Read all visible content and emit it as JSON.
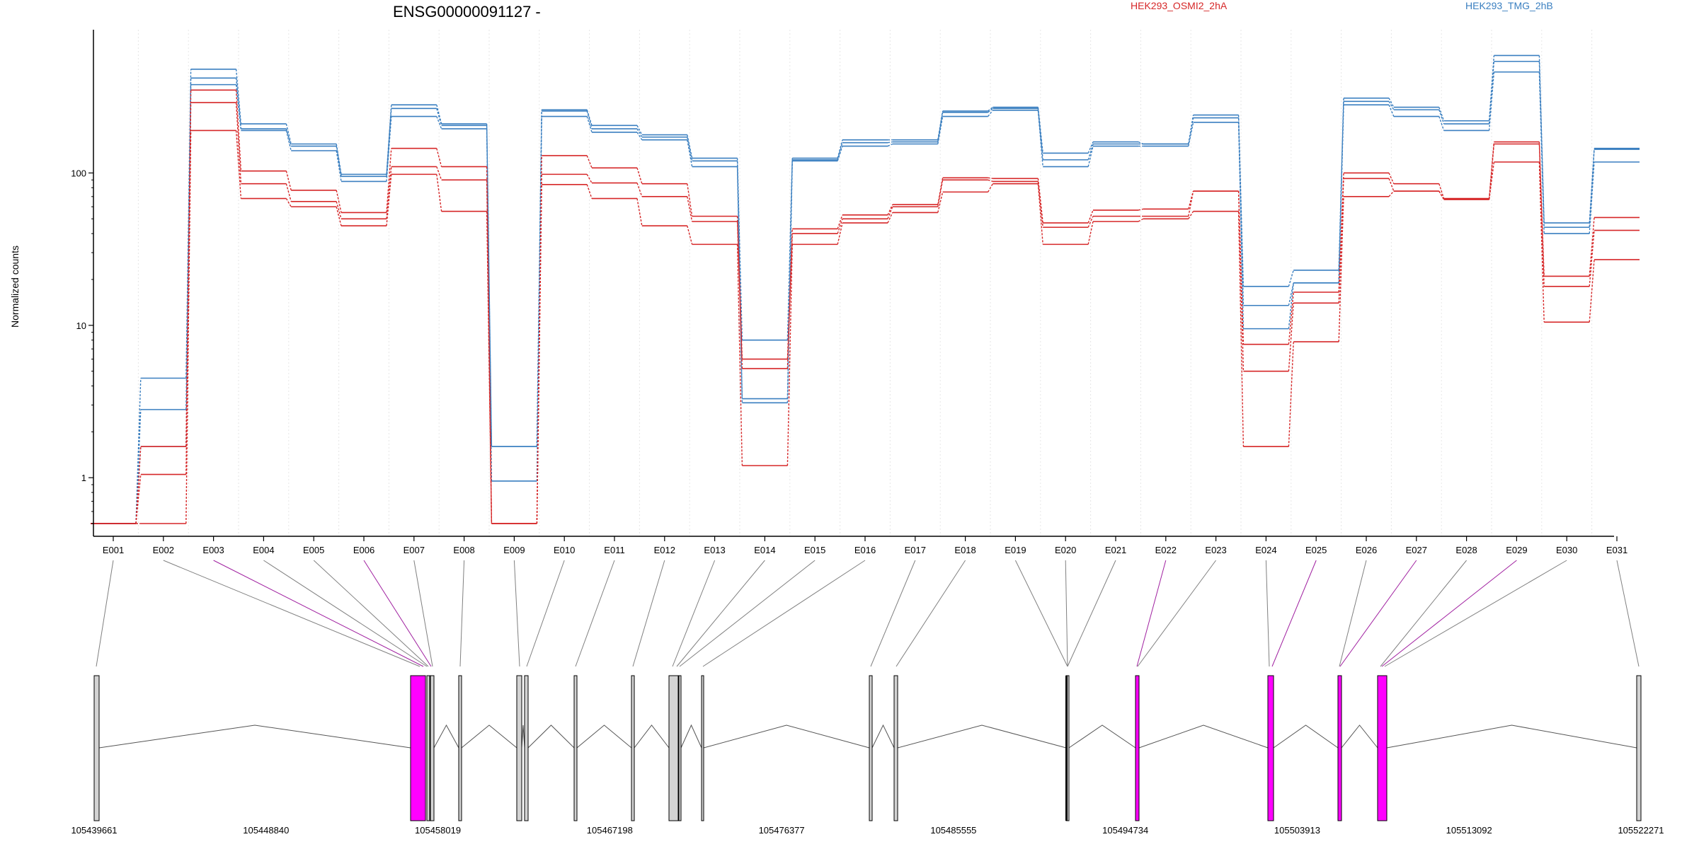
{
  "chart_data": {
    "type": "line",
    "title": "ENSG00000091127 -",
    "ylabel": "Normalized counts",
    "yscale": "log",
    "ylim": [
      0.5,
      800
    ],
    "y_ticks": [
      1,
      10,
      100
    ],
    "y_tick_labels": [
      "1",
      "10",
      "100"
    ],
    "categories": [
      "E001",
      "E002",
      "E003",
      "E004",
      "E005",
      "E006",
      "E007",
      "E008",
      "E009",
      "E010",
      "E011",
      "E012",
      "E013",
      "E014",
      "E015",
      "E016",
      "E017",
      "E018",
      "E019",
      "E020",
      "E021",
      "E022",
      "E023",
      "E024",
      "E025",
      "E026",
      "E027",
      "E028",
      "E029",
      "E030",
      "E031"
    ],
    "legend": [
      {
        "name": "HEK293_OSMI2_2hA",
        "color": "#d62728"
      },
      {
        "name": "HEK293_TMG_2hB",
        "color": "#3a7fc0"
      }
    ],
    "series": [
      {
        "group": "HEK293_TMG_2hB",
        "color": "#3a7fc0",
        "values": [
          0.5,
          4.5,
          480,
          210,
          155,
          98,
          280,
          210,
          1.6,
          260,
          205,
          178,
          125,
          8.0,
          125,
          165,
          165,
          255,
          270,
          135,
          160,
          155,
          240,
          18,
          23,
          310,
          270,
          220,
          590,
          47,
          145
        ]
      },
      {
        "group": "HEK293_TMG_2hB",
        "color": "#3a7fc0",
        "values": [
          0.5,
          2.8,
          420,
          195,
          150,
          95,
          265,
          205,
          1.6,
          255,
          195,
          172,
          120,
          3.3,
          122,
          158,
          160,
          250,
          265,
          122,
          155,
          155,
          230,
          13.5,
          19,
          295,
          260,
          210,
          540,
          44,
          143
        ]
      },
      {
        "group": "HEK293_TMG_2hB",
        "color": "#3a7fc0",
        "values": [
          0.5,
          1.6,
          380,
          190,
          140,
          88,
          235,
          195,
          0.95,
          235,
          185,
          165,
          110,
          3.1,
          120,
          150,
          155,
          235,
          258,
          110,
          150,
          150,
          215,
          9.5,
          19,
          280,
          235,
          190,
          460,
          40,
          118
        ]
      },
      {
        "group": "HEK293_OSMI2_2hA",
        "color": "#d62728",
        "values": [
          0.5,
          1.6,
          350,
          103,
          77,
          55,
          145,
          110,
          0.5,
          130,
          108,
          85,
          52,
          6.0,
          43,
          53,
          62,
          93,
          92,
          47,
          57,
          58,
          76,
          7.5,
          16.5,
          100,
          85,
          68,
          160,
          21,
          51
        ]
      },
      {
        "group": "HEK293_OSMI2_2hA",
        "color": "#d62728",
        "values": [
          0.5,
          1.05,
          290,
          85,
          65,
          50,
          110,
          90,
          0.5,
          98,
          86,
          70,
          48,
          5.2,
          40,
          50,
          60,
          90,
          88,
          44,
          52,
          52,
          76,
          5.0,
          14,
          92,
          76,
          67,
          155,
          18,
          42
        ]
      },
      {
        "group": "HEK293_OSMI2_2hA",
        "color": "#d62728",
        "values": [
          0.5,
          0.5,
          190,
          68,
          60,
          45,
          98,
          56,
          0.5,
          84,
          68,
          45,
          34,
          1.2,
          34,
          47,
          55,
          75,
          85,
          34,
          48,
          50,
          56,
          1.6,
          7.8,
          70,
          76,
          67,
          118,
          10.5,
          27
        ]
      }
    ],
    "gene_model": {
      "start_label": "105439661",
      "end_label": "105522271",
      "axis_labels": [
        "105439661",
        "105448840",
        "105458019",
        "105467198",
        "105476377",
        "105485555",
        "105494734",
        "105503913",
        "105513092",
        "105522271"
      ],
      "highlight_color": "#ff00ff",
      "exon_fill": "#d3d3d3"
    }
  }
}
